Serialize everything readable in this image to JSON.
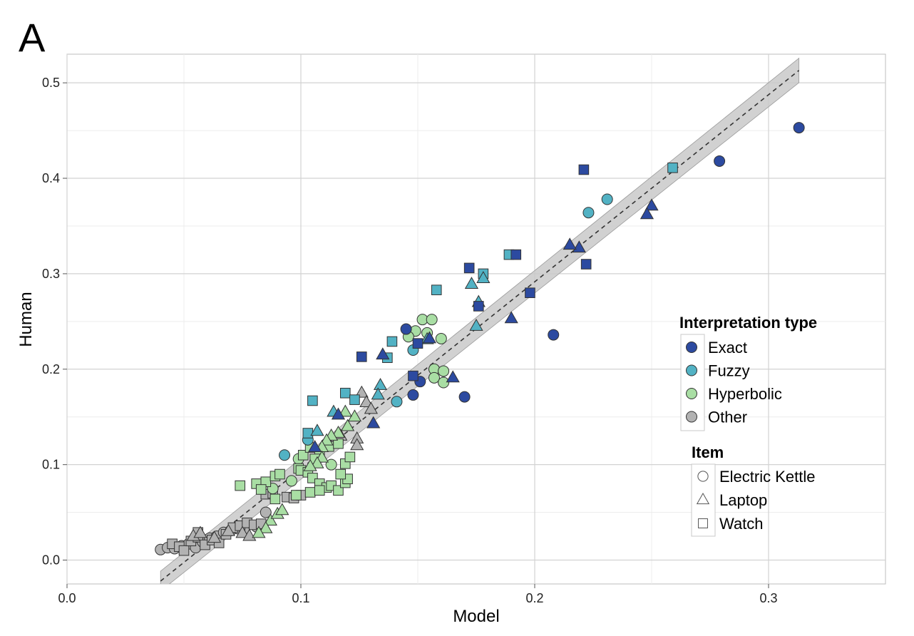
{
  "chart_data": {
    "type": "scatter",
    "panel_label": "A",
    "xlabel": "Model",
    "ylabel": "Human",
    "xlim": [
      0.0,
      0.35
    ],
    "ylim": [
      -0.025,
      0.53
    ],
    "x_ticks": [
      0.0,
      0.1,
      0.2,
      0.3
    ],
    "x_tick_labels": [
      "0.0",
      "0.1",
      "0.2",
      "0.3"
    ],
    "y_ticks": [
      0.0,
      0.1,
      0.2,
      0.3,
      0.4,
      0.5
    ],
    "y_tick_labels": [
      "0.0",
      "0.1",
      "0.2",
      "0.3",
      "0.4",
      "0.5"
    ],
    "grid": true,
    "fit_line": {
      "style": "dashed",
      "confidence_band": true,
      "x": [
        0.04,
        0.313
      ],
      "y": [
        -0.022,
        0.513
      ],
      "band_halfwidth": 0.008
    },
    "legend_placement": "right",
    "legends": [
      {
        "title": "Interpretation type",
        "entries": [
          {
            "label": "Exact",
            "color": "#2c4aa0"
          },
          {
            "label": "Fuzzy",
            "color": "#52b2c4"
          },
          {
            "label": "Hyperbolic",
            "color": "#a9dea4"
          },
          {
            "label": "Other",
            "color": "#b2b2b2"
          }
        ]
      },
      {
        "title": "Item",
        "entries": [
          {
            "label": "Electric Kettle",
            "shape": "circle"
          },
          {
            "label": "Laptop",
            "shape": "triangle"
          },
          {
            "label": "Watch",
            "shape": "square"
          }
        ]
      }
    ],
    "series": [
      {
        "name": "Exact",
        "color": "#2c4aa0",
        "points": [
          {
            "x": 0.313,
            "y": 0.453,
            "shape": "circle"
          },
          {
            "x": 0.279,
            "y": 0.418,
            "shape": "circle"
          },
          {
            "x": 0.208,
            "y": 0.236,
            "shape": "circle"
          },
          {
            "x": 0.145,
            "y": 0.242,
            "shape": "circle"
          },
          {
            "x": 0.151,
            "y": 0.187,
            "shape": "circle"
          },
          {
            "x": 0.148,
            "y": 0.173,
            "shape": "circle"
          },
          {
            "x": 0.17,
            "y": 0.171,
            "shape": "circle"
          },
          {
            "x": 0.221,
            "y": 0.409,
            "shape": "square"
          },
          {
            "x": 0.222,
            "y": 0.31,
            "shape": "square"
          },
          {
            "x": 0.198,
            "y": 0.28,
            "shape": "square"
          },
          {
            "x": 0.192,
            "y": 0.32,
            "shape": "square"
          },
          {
            "x": 0.172,
            "y": 0.306,
            "shape": "square"
          },
          {
            "x": 0.176,
            "y": 0.266,
            "shape": "square"
          },
          {
            "x": 0.126,
            "y": 0.213,
            "shape": "square"
          },
          {
            "x": 0.15,
            "y": 0.227,
            "shape": "square"
          },
          {
            "x": 0.148,
            "y": 0.193,
            "shape": "square"
          },
          {
            "x": 0.25,
            "y": 0.371,
            "shape": "triangle"
          },
          {
            "x": 0.248,
            "y": 0.362,
            "shape": "triangle"
          },
          {
            "x": 0.219,
            "y": 0.327,
            "shape": "triangle"
          },
          {
            "x": 0.215,
            "y": 0.33,
            "shape": "triangle"
          },
          {
            "x": 0.19,
            "y": 0.253,
            "shape": "triangle"
          },
          {
            "x": 0.165,
            "y": 0.191,
            "shape": "triangle"
          },
          {
            "x": 0.155,
            "y": 0.232,
            "shape": "triangle"
          },
          {
            "x": 0.131,
            "y": 0.143,
            "shape": "triangle"
          },
          {
            "x": 0.116,
            "y": 0.152,
            "shape": "triangle"
          },
          {
            "x": 0.135,
            "y": 0.215,
            "shape": "triangle"
          },
          {
            "x": 0.106,
            "y": 0.118,
            "shape": "triangle"
          }
        ]
      },
      {
        "name": "Fuzzy",
        "color": "#52b2c4",
        "points": [
          {
            "x": 0.231,
            "y": 0.378,
            "shape": "circle"
          },
          {
            "x": 0.223,
            "y": 0.364,
            "shape": "circle"
          },
          {
            "x": 0.141,
            "y": 0.166,
            "shape": "circle"
          },
          {
            "x": 0.093,
            "y": 0.11,
            "shape": "circle"
          },
          {
            "x": 0.148,
            "y": 0.22,
            "shape": "circle"
          },
          {
            "x": 0.103,
            "y": 0.126,
            "shape": "circle"
          },
          {
            "x": 0.259,
            "y": 0.411,
            "shape": "square"
          },
          {
            "x": 0.189,
            "y": 0.32,
            "shape": "square"
          },
          {
            "x": 0.178,
            "y": 0.3,
            "shape": "square"
          },
          {
            "x": 0.158,
            "y": 0.283,
            "shape": "square"
          },
          {
            "x": 0.139,
            "y": 0.229,
            "shape": "square"
          },
          {
            "x": 0.137,
            "y": 0.212,
            "shape": "square"
          },
          {
            "x": 0.105,
            "y": 0.167,
            "shape": "square"
          },
          {
            "x": 0.119,
            "y": 0.175,
            "shape": "square"
          },
          {
            "x": 0.123,
            "y": 0.168,
            "shape": "square"
          },
          {
            "x": 0.103,
            "y": 0.133,
            "shape": "square"
          },
          {
            "x": 0.178,
            "y": 0.295,
            "shape": "triangle"
          },
          {
            "x": 0.173,
            "y": 0.289,
            "shape": "triangle"
          },
          {
            "x": 0.176,
            "y": 0.27,
            "shape": "triangle"
          },
          {
            "x": 0.175,
            "y": 0.245,
            "shape": "triangle"
          },
          {
            "x": 0.154,
            "y": 0.231,
            "shape": "triangle"
          },
          {
            "x": 0.134,
            "y": 0.183,
            "shape": "triangle"
          },
          {
            "x": 0.133,
            "y": 0.173,
            "shape": "triangle"
          },
          {
            "x": 0.114,
            "y": 0.155,
            "shape": "triangle"
          },
          {
            "x": 0.107,
            "y": 0.135,
            "shape": "triangle"
          }
        ]
      },
      {
        "name": "Hyperbolic",
        "color": "#a9dea4",
        "points": [
          {
            "x": 0.152,
            "y": 0.252,
            "shape": "circle"
          },
          {
            "x": 0.156,
            "y": 0.252,
            "shape": "circle"
          },
          {
            "x": 0.149,
            "y": 0.24,
            "shape": "circle"
          },
          {
            "x": 0.154,
            "y": 0.238,
            "shape": "circle"
          },
          {
            "x": 0.146,
            "y": 0.234,
            "shape": "circle"
          },
          {
            "x": 0.16,
            "y": 0.232,
            "shape": "circle"
          },
          {
            "x": 0.157,
            "y": 0.2,
            "shape": "circle"
          },
          {
            "x": 0.161,
            "y": 0.198,
            "shape": "circle"
          },
          {
            "x": 0.157,
            "y": 0.191,
            "shape": "circle"
          },
          {
            "x": 0.161,
            "y": 0.186,
            "shape": "circle"
          },
          {
            "x": 0.096,
            "y": 0.083,
            "shape": "circle"
          },
          {
            "x": 0.088,
            "y": 0.075,
            "shape": "circle"
          },
          {
            "x": 0.111,
            "y": 0.122,
            "shape": "circle"
          },
          {
            "x": 0.099,
            "y": 0.106,
            "shape": "circle"
          },
          {
            "x": 0.113,
            "y": 0.1,
            "shape": "circle"
          },
          {
            "x": 0.074,
            "y": 0.078,
            "shape": "square"
          },
          {
            "x": 0.081,
            "y": 0.08,
            "shape": "square"
          },
          {
            "x": 0.085,
            "y": 0.082,
            "shape": "square"
          },
          {
            "x": 0.089,
            "y": 0.088,
            "shape": "square"
          },
          {
            "x": 0.091,
            "y": 0.09,
            "shape": "square"
          },
          {
            "x": 0.099,
            "y": 0.096,
            "shape": "square"
          },
          {
            "x": 0.101,
            "y": 0.11,
            "shape": "square"
          },
          {
            "x": 0.104,
            "y": 0.118,
            "shape": "square"
          },
          {
            "x": 0.108,
            "y": 0.113,
            "shape": "square"
          },
          {
            "x": 0.1,
            "y": 0.094,
            "shape": "square"
          },
          {
            "x": 0.103,
            "y": 0.092,
            "shape": "square"
          },
          {
            "x": 0.105,
            "y": 0.086,
            "shape": "square"
          },
          {
            "x": 0.108,
            "y": 0.08,
            "shape": "square"
          },
          {
            "x": 0.111,
            "y": 0.076,
            "shape": "square"
          },
          {
            "x": 0.113,
            "y": 0.078,
            "shape": "square"
          },
          {
            "x": 0.116,
            "y": 0.073,
            "shape": "square"
          },
          {
            "x": 0.119,
            "y": 0.081,
            "shape": "square"
          },
          {
            "x": 0.12,
            "y": 0.085,
            "shape": "square"
          },
          {
            "x": 0.117,
            "y": 0.09,
            "shape": "square"
          },
          {
            "x": 0.119,
            "y": 0.101,
            "shape": "square"
          },
          {
            "x": 0.121,
            "y": 0.108,
            "shape": "square"
          },
          {
            "x": 0.106,
            "y": 0.106,
            "shape": "square"
          },
          {
            "x": 0.089,
            "y": 0.064,
            "shape": "square"
          },
          {
            "x": 0.098,
            "y": 0.068,
            "shape": "square"
          },
          {
            "x": 0.104,
            "y": 0.071,
            "shape": "square"
          },
          {
            "x": 0.108,
            "y": 0.073,
            "shape": "square"
          },
          {
            "x": 0.083,
            "y": 0.074,
            "shape": "square"
          },
          {
            "x": 0.112,
            "y": 0.119,
            "shape": "square"
          },
          {
            "x": 0.116,
            "y": 0.122,
            "shape": "square"
          },
          {
            "x": 0.123,
            "y": 0.15,
            "shape": "triangle"
          },
          {
            "x": 0.119,
            "y": 0.155,
            "shape": "triangle"
          },
          {
            "x": 0.12,
            "y": 0.14,
            "shape": "triangle"
          },
          {
            "x": 0.116,
            "y": 0.133,
            "shape": "triangle"
          },
          {
            "x": 0.113,
            "y": 0.13,
            "shape": "triangle"
          },
          {
            "x": 0.111,
            "y": 0.125,
            "shape": "triangle"
          },
          {
            "x": 0.109,
            "y": 0.118,
            "shape": "triangle"
          },
          {
            "x": 0.109,
            "y": 0.107,
            "shape": "triangle"
          },
          {
            "x": 0.107,
            "y": 0.101,
            "shape": "triangle"
          },
          {
            "x": 0.104,
            "y": 0.098,
            "shape": "triangle"
          },
          {
            "x": 0.087,
            "y": 0.041,
            "shape": "triangle"
          },
          {
            "x": 0.09,
            "y": 0.048,
            "shape": "triangle"
          },
          {
            "x": 0.092,
            "y": 0.052,
            "shape": "triangle"
          },
          {
            "x": 0.085,
            "y": 0.033,
            "shape": "triangle"
          },
          {
            "x": 0.082,
            "y": 0.028,
            "shape": "triangle"
          }
        ]
      },
      {
        "name": "Other",
        "color": "#b2b2b2",
        "points": [
          {
            "x": 0.04,
            "y": 0.011,
            "shape": "circle"
          },
          {
            "x": 0.043,
            "y": 0.013,
            "shape": "circle"
          },
          {
            "x": 0.046,
            "y": 0.012,
            "shape": "circle"
          },
          {
            "x": 0.049,
            "y": 0.015,
            "shape": "circle"
          },
          {
            "x": 0.052,
            "y": 0.017,
            "shape": "circle"
          },
          {
            "x": 0.055,
            "y": 0.013,
            "shape": "circle"
          },
          {
            "x": 0.058,
            "y": 0.019,
            "shape": "circle"
          },
          {
            "x": 0.061,
            "y": 0.023,
            "shape": "circle"
          },
          {
            "x": 0.064,
            "y": 0.025,
            "shape": "circle"
          },
          {
            "x": 0.067,
            "y": 0.029,
            "shape": "circle"
          },
          {
            "x": 0.07,
            "y": 0.031,
            "shape": "circle"
          },
          {
            "x": 0.073,
            "y": 0.033,
            "shape": "circle"
          },
          {
            "x": 0.076,
            "y": 0.03,
            "shape": "circle"
          },
          {
            "x": 0.081,
            "y": 0.035,
            "shape": "circle"
          },
          {
            "x": 0.085,
            "y": 0.05,
            "shape": "circle"
          },
          {
            "x": 0.045,
            "y": 0.017,
            "shape": "square"
          },
          {
            "x": 0.048,
            "y": 0.014,
            "shape": "square"
          },
          {
            "x": 0.05,
            "y": 0.01,
            "shape": "square"
          },
          {
            "x": 0.053,
            "y": 0.02,
            "shape": "square"
          },
          {
            "x": 0.056,
            "y": 0.024,
            "shape": "square"
          },
          {
            "x": 0.056,
            "y": 0.029,
            "shape": "square"
          },
          {
            "x": 0.059,
            "y": 0.016,
            "shape": "square"
          },
          {
            "x": 0.062,
            "y": 0.021,
            "shape": "square"
          },
          {
            "x": 0.065,
            "y": 0.018,
            "shape": "square"
          },
          {
            "x": 0.068,
            "y": 0.027,
            "shape": "square"
          },
          {
            "x": 0.071,
            "y": 0.034,
            "shape": "square"
          },
          {
            "x": 0.074,
            "y": 0.036,
            "shape": "square"
          },
          {
            "x": 0.077,
            "y": 0.039,
            "shape": "square"
          },
          {
            "x": 0.08,
            "y": 0.037,
            "shape": "square"
          },
          {
            "x": 0.083,
            "y": 0.038,
            "shape": "square"
          },
          {
            "x": 0.085,
            "y": 0.069,
            "shape": "square"
          },
          {
            "x": 0.088,
            "y": 0.07,
            "shape": "square"
          },
          {
            "x": 0.094,
            "y": 0.066,
            "shape": "square"
          },
          {
            "x": 0.097,
            "y": 0.065,
            "shape": "square"
          },
          {
            "x": 0.1,
            "y": 0.068,
            "shape": "square"
          },
          {
            "x": 0.054,
            "y": 0.025,
            "shape": "triangle"
          },
          {
            "x": 0.057,
            "y": 0.028,
            "shape": "triangle"
          },
          {
            "x": 0.063,
            "y": 0.023,
            "shape": "triangle"
          },
          {
            "x": 0.069,
            "y": 0.03,
            "shape": "triangle"
          },
          {
            "x": 0.075,
            "y": 0.028,
            "shape": "triangle"
          },
          {
            "x": 0.078,
            "y": 0.025,
            "shape": "triangle"
          },
          {
            "x": 0.113,
            "y": 0.125,
            "shape": "triangle"
          },
          {
            "x": 0.117,
            "y": 0.13,
            "shape": "triangle"
          },
          {
            "x": 0.124,
            "y": 0.127,
            "shape": "triangle"
          },
          {
            "x": 0.124,
            "y": 0.12,
            "shape": "triangle"
          },
          {
            "x": 0.126,
            "y": 0.175,
            "shape": "triangle"
          },
          {
            "x": 0.128,
            "y": 0.165,
            "shape": "triangle"
          },
          {
            "x": 0.13,
            "y": 0.158,
            "shape": "triangle"
          }
        ]
      }
    ]
  }
}
